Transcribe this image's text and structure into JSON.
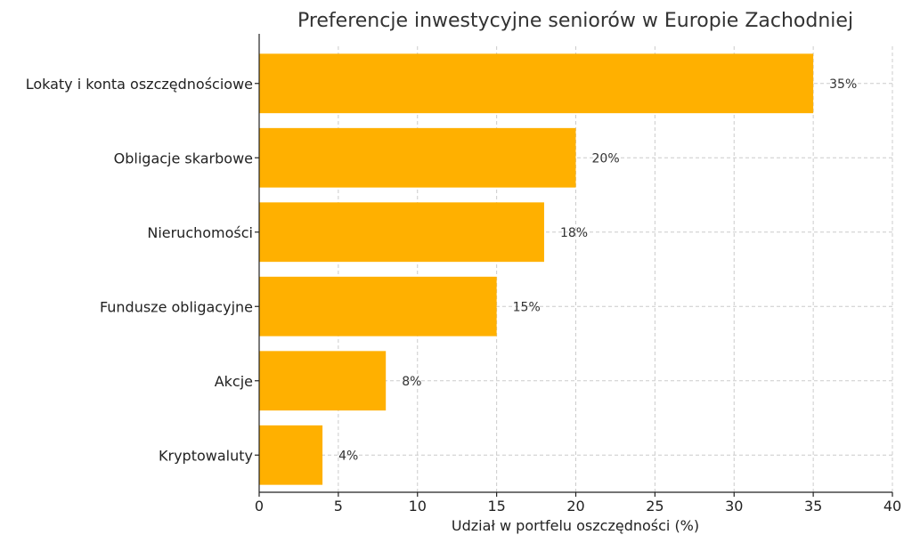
{
  "chart_data": {
    "type": "bar",
    "orientation": "horizontal",
    "title": "Preferencje inwestycyjne seniorów w Europie Zachodniej",
    "xlabel": "Udział w portfelu oszczędności (%)",
    "ylabel": "",
    "categories": [
      "Lokaty i konta oszczędnościowe",
      "Obligacje skarbowe",
      "Nieruchomości",
      "Fundusze obligacyjne",
      "Akcje",
      "Kryptowaluty"
    ],
    "values": [
      35,
      20,
      18,
      15,
      8,
      4
    ],
    "data_labels": [
      "35%",
      "20%",
      "18%",
      "15%",
      "8%",
      "4%"
    ],
    "xlim": [
      0,
      40
    ],
    "xticks": [
      0,
      5,
      10,
      15,
      20,
      25,
      30,
      35,
      40
    ],
    "grid": true,
    "bar_color": "#FFB000"
  }
}
